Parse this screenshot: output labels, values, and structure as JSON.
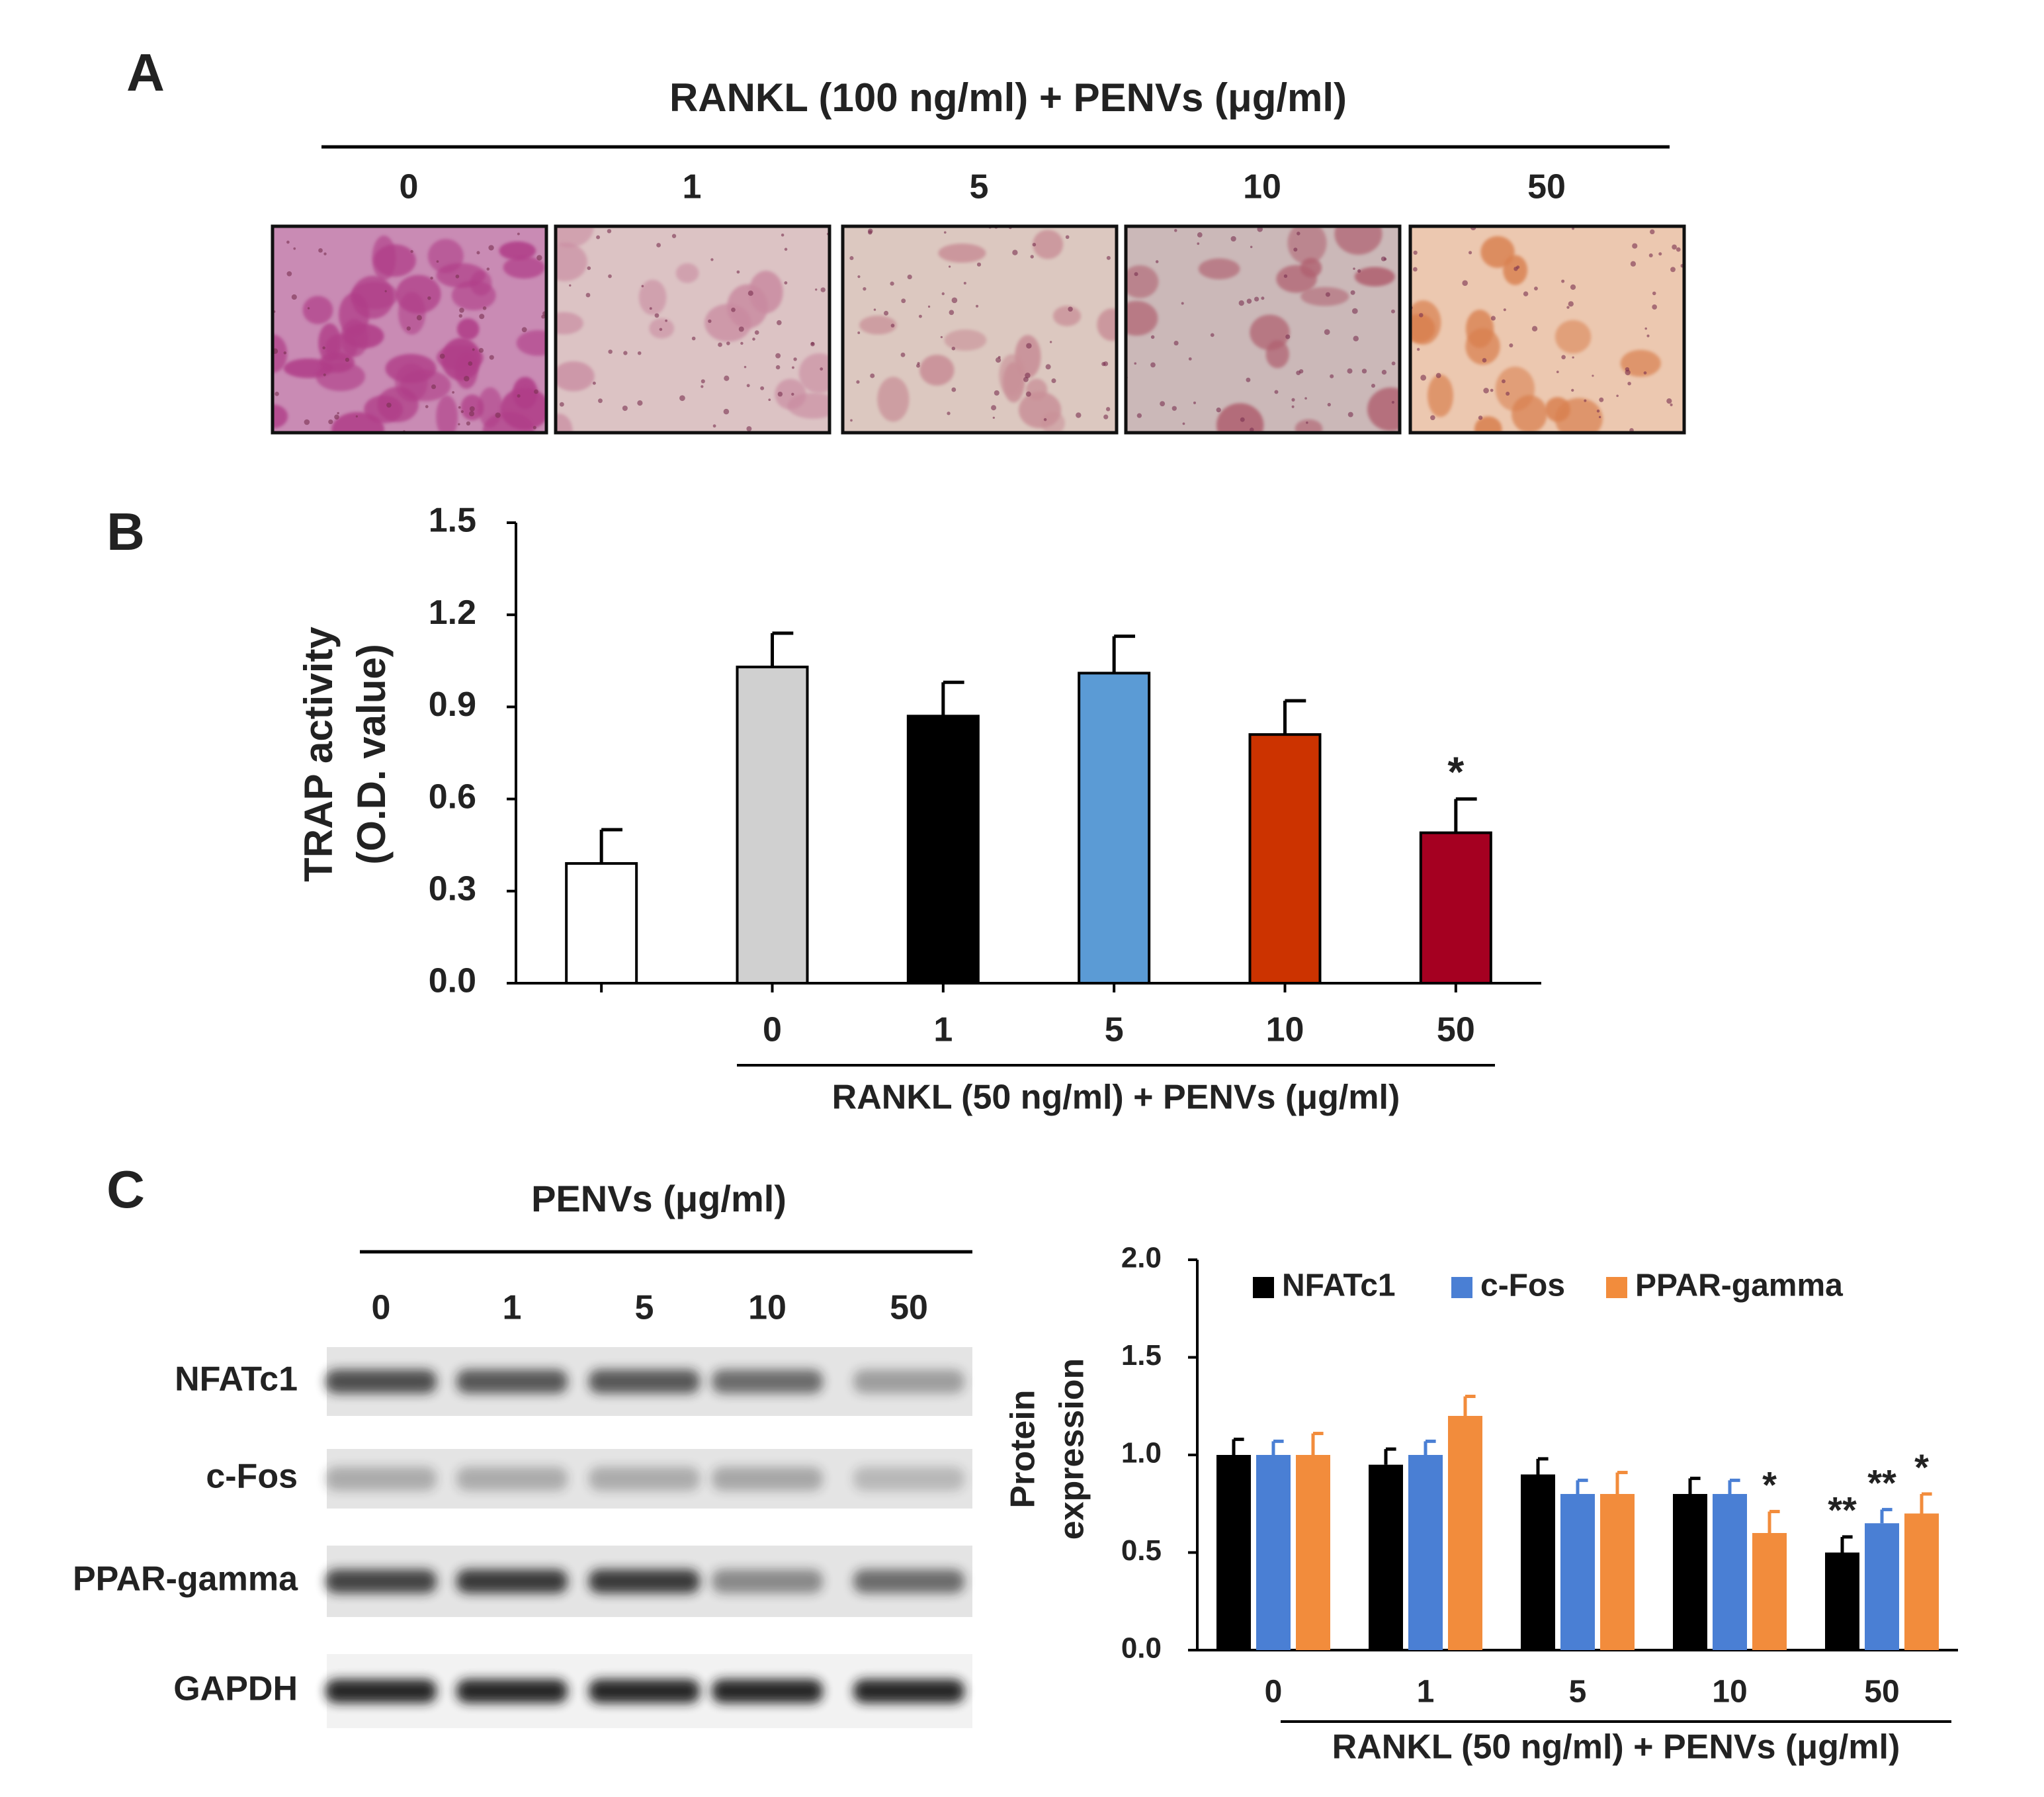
{
  "panel_a": {
    "label": "A",
    "title": "RANKL (100 ng/ml) + PENVs (μg/ml)",
    "concentrations": [
      "0",
      "1",
      "5",
      "10",
      "50"
    ]
  },
  "panel_c_blot": {
    "label": "C",
    "title": "PENVs (μg/ml)",
    "lanes": [
      "0",
      "1",
      "5",
      "10",
      "50"
    ],
    "rows": [
      "NFATc1",
      "c-Fos",
      "PPAR-gamma",
      "GAPDH"
    ]
  },
  "chart_data": [
    {
      "type": "bar",
      "panel_label": "B",
      "ylabel": [
        "TRAP activity",
        "(O.D. value)"
      ],
      "xlabel": "RANKL (50 ng/ml) + PENVs (μg/ml)",
      "categories": [
        null,
        "0",
        "1",
        "5",
        "10",
        "50"
      ],
      "values": [
        0.39,
        1.03,
        0.87,
        1.01,
        0.81,
        0.49
      ],
      "errors": [
        0.11,
        0.11,
        0.11,
        0.12,
        0.11,
        0.11
      ],
      "colors": [
        "#ffffff",
        "#d0d0d0",
        "#000000",
        "#5b9bd5",
        "#cc3300",
        "#a50021"
      ],
      "significance": [
        null,
        null,
        null,
        null,
        null,
        "*"
      ],
      "ylim": [
        0,
        1.5
      ],
      "yticks": [
        {
          "value": 0,
          "label": "0.0"
        },
        0.3,
        0.6,
        0.9,
        1.2,
        1.5
      ]
    },
    {
      "type": "bar",
      "ylabel": [
        "Protein",
        "expression"
      ],
      "xlabel": "RANKL (50 ng/ml) + PENVs (μg/ml)",
      "categories": [
        "0",
        "1",
        "5",
        "10",
        "50"
      ],
      "series": [
        {
          "name": "NFATc1",
          "color": "#000000",
          "values": [
            1.0,
            0.95,
            0.9,
            0.8,
            0.5
          ],
          "errors": [
            0.08,
            0.08,
            0.08,
            0.08,
            0.08
          ],
          "significance": [
            null,
            null,
            null,
            null,
            "**"
          ]
        },
        {
          "name": "c-Fos",
          "color": "#4a7fd4",
          "values": [
            1.0,
            1.0,
            0.8,
            0.8,
            0.65
          ],
          "errors": [
            0.07,
            0.07,
            0.07,
            0.07,
            0.07
          ],
          "significance": [
            null,
            null,
            null,
            null,
            "**"
          ]
        },
        {
          "name": "PPAR-gamma",
          "color": "#f28c3c",
          "values": [
            1.0,
            1.2,
            0.8,
            0.6,
            0.7
          ],
          "errors": [
            0.11,
            0.1,
            0.11,
            0.11,
            0.1
          ],
          "significance": [
            null,
            null,
            null,
            "*",
            "*"
          ]
        }
      ],
      "legend": "top",
      "ylim": [
        0,
        2
      ],
      "yticks": [
        {
          "value": 0,
          "label": "0.0"
        },
        0.5,
        {
          "value": 1,
          "label": "1.0"
        },
        1.5,
        {
          "value": 2,
          "label": "2.0"
        }
      ]
    }
  ]
}
